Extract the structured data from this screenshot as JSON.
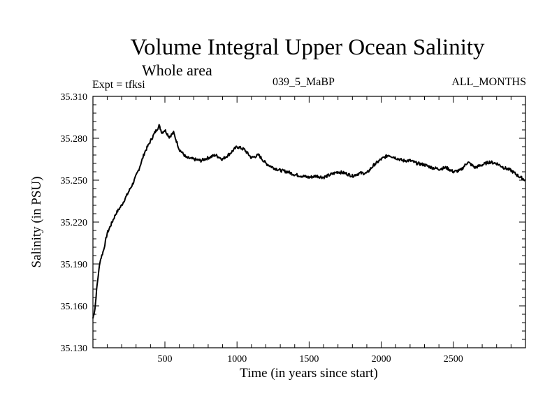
{
  "chart_data": {
    "type": "line",
    "title": "Volume Integral Upper Ocean Salinity",
    "subtitle": "Whole area",
    "left_label": "Expt = tfksi",
    "center_label": "039_5_MaBP",
    "right_label": "ALL_MONTHS",
    "xlabel": "Time (in years since start)",
    "ylabel": "Salinity (in PSU)",
    "xlim": [
      1,
      3000
    ],
    "ylim": [
      35.13,
      35.31
    ],
    "x_ticks": [
      500,
      1000,
      1500,
      2000,
      2500
    ],
    "x_tick_labels": [
      "500",
      "1000",
      "1500",
      "2000",
      "2500"
    ],
    "y_ticks": [
      35.13,
      35.16,
      35.19,
      35.22,
      35.25,
      35.28,
      35.31
    ],
    "y_tick_labels": [
      "35.130",
      "35.160",
      "35.190",
      "35.220",
      "35.250",
      "35.280",
      "35.310"
    ],
    "series": [
      {
        "name": "Salinity",
        "x": [
          1,
          15,
          30,
          50,
          75,
          100,
          130,
          160,
          200,
          240,
          280,
          320,
          360,
          400,
          430,
          460,
          480,
          500,
          530,
          560,
          600,
          650,
          700,
          750,
          800,
          850,
          900,
          950,
          1000,
          1050,
          1100,
          1150,
          1200,
          1250,
          1300,
          1350,
          1400,
          1450,
          1500,
          1550,
          1600,
          1650,
          1700,
          1750,
          1800,
          1850,
          1900,
          1950,
          2000,
          2050,
          2100,
          2150,
          2200,
          2250,
          2300,
          2350,
          2400,
          2450,
          2500,
          2550,
          2600,
          2650,
          2700,
          2750,
          2800,
          2850,
          2900,
          2950,
          3000
        ],
        "values": [
          35.151,
          35.158,
          35.175,
          35.192,
          35.2,
          35.212,
          35.219,
          35.226,
          35.232,
          35.24,
          35.248,
          35.258,
          35.27,
          35.278,
          35.284,
          35.289,
          35.284,
          35.286,
          35.281,
          35.284,
          35.272,
          35.266,
          35.265,
          35.264,
          35.266,
          35.268,
          35.265,
          35.269,
          35.274,
          35.272,
          35.266,
          35.268,
          35.262,
          35.259,
          35.257,
          35.256,
          35.254,
          35.253,
          35.252,
          35.253,
          35.252,
          35.254,
          35.256,
          35.255,
          35.253,
          35.255,
          35.255,
          35.261,
          35.265,
          35.268,
          35.266,
          35.264,
          35.264,
          35.262,
          35.261,
          35.259,
          35.258,
          35.259,
          35.256,
          35.257,
          35.263,
          35.259,
          35.261,
          35.263,
          35.262,
          35.259,
          35.257,
          35.253,
          35.25
        ]
      }
    ],
    "grid": false,
    "line_color": "#000000"
  }
}
